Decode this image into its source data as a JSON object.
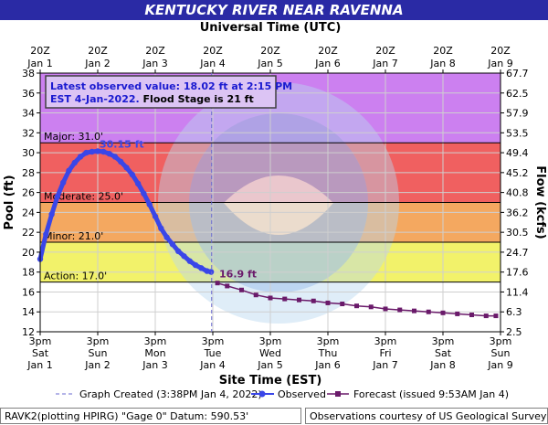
{
  "title": "KENTUCKY RIVER NEAR RAVENNA",
  "colors": {
    "major": "#f06060",
    "moderate": "#f4a860",
    "minor": "#f2f26a",
    "action": "#f8f8a0",
    "record": "#cc80f0",
    "observed": "#3a46e8",
    "forecast": "#6a1a6a",
    "title_bg": "#2a2aa5"
  },
  "legend": {
    "graph_created": "Graph Created (3:38PM Jan 4, 2022)",
    "observed": "Observed",
    "forecast": "Forecast (issued 9:53AM Jan 4)"
  },
  "footer": {
    "left": "RAVK2(plotting HPIRG) \"Gage 0\" Datum:  590.53'",
    "right": "Observations courtesy of US Geological Survey"
  },
  "chart_data": {
    "type": "line",
    "title": "KENTUCKY RIVER NEAR RAVENNA",
    "top_axis_title": "Universal Time (UTC)",
    "xlabel": "Site Time (EST)",
    "ylabel": "Pool (ft)",
    "y2label": "Flow (kcfs)",
    "ylim": [
      12,
      38
    ],
    "yticks": [
      12,
      14,
      16,
      18,
      20,
      22,
      24,
      26,
      28,
      30,
      32,
      34,
      36,
      38
    ],
    "y2ticks": [
      "2.5",
      "6.3",
      "11.4",
      "17.6",
      "24.7",
      "30.5",
      "36.2",
      "40.8",
      "45.2",
      "49.4",
      "53.5",
      "57.9",
      "62.5",
      "67.7"
    ],
    "x_unit": "days after 3pm EST Jan 1",
    "xlim": [
      0,
      8
    ],
    "bottom_ticks": [
      {
        "time": "3pm",
        "day": "Sat",
        "date": "Jan 1"
      },
      {
        "time": "3pm",
        "day": "Sun",
        "date": "Jan 2"
      },
      {
        "time": "3pm",
        "day": "Mon",
        "date": "Jan 3"
      },
      {
        "time": "3pm",
        "day": "Tue",
        "date": "Jan 4"
      },
      {
        "time": "3pm",
        "day": "Wed",
        "date": "Jan 5"
      },
      {
        "time": "3pm",
        "day": "Thu",
        "date": "Jan 6"
      },
      {
        "time": "3pm",
        "day": "Fri",
        "date": "Jan 7"
      },
      {
        "time": "3pm",
        "day": "Sat",
        "date": "Jan 8"
      },
      {
        "time": "3pm",
        "day": "Sun",
        "date": "Jan 9"
      }
    ],
    "top_ticks": [
      {
        "time": "20Z",
        "date": "Jan 1"
      },
      {
        "time": "20Z",
        "date": "Jan 2"
      },
      {
        "time": "20Z",
        "date": "Jan 3"
      },
      {
        "time": "20Z",
        "date": "Jan 4"
      },
      {
        "time": "20Z",
        "date": "Jan 5"
      },
      {
        "time": "20Z",
        "date": "Jan 6"
      },
      {
        "time": "20Z",
        "date": "Jan 7"
      },
      {
        "time": "20Z",
        "date": "Jan 8"
      },
      {
        "time": "20Z",
        "date": "Jan 9"
      }
    ],
    "flood_stages": [
      {
        "name": "Major",
        "value": 31.0,
        "label": "Major: 31.0'"
      },
      {
        "name": "Moderate",
        "value": 25.0,
        "label": "Moderate: 25.0'"
      },
      {
        "name": "Minor",
        "value": 21.0,
        "label": "Minor: 21.0'"
      },
      {
        "name": "Action",
        "value": 17.0,
        "label": "Action: 17.0'"
      }
    ],
    "info_box": {
      "line1": "Latest observed value: 18.02 ft at 2:15 PM",
      "line2a": "EST 4-Jan-2022.",
      "line2b": "Flood Stage is 21 ft"
    },
    "observed_peak_label": "30.15 ft",
    "forecast_start_label": "16.9 ft",
    "graph_created_x": 2.98,
    "series": [
      {
        "name": "Observed",
        "x": [
          0.0,
          0.1,
          0.2,
          0.3,
          0.4,
          0.5,
          0.6,
          0.7,
          0.8,
          0.9,
          1.0,
          1.1,
          1.2,
          1.3,
          1.4,
          1.5,
          1.6,
          1.7,
          1.8,
          1.9,
          2.0,
          2.1,
          2.2,
          2.3,
          2.4,
          2.5,
          2.6,
          2.7,
          2.8,
          2.9,
          2.97
        ],
        "values": [
          19.3,
          21.8,
          23.8,
          25.6,
          27.0,
          28.2,
          29.0,
          29.6,
          30.0,
          30.1,
          30.15,
          30.1,
          29.9,
          29.6,
          29.1,
          28.5,
          27.8,
          26.9,
          25.9,
          24.8,
          23.6,
          22.4,
          21.5,
          20.8,
          20.1,
          19.6,
          19.1,
          18.7,
          18.4,
          18.1,
          18.02
        ]
      },
      {
        "name": "Forecast",
        "x": [
          3.08,
          3.25,
          3.5,
          3.75,
          4.0,
          4.25,
          4.5,
          4.75,
          5.0,
          5.25,
          5.5,
          5.75,
          6.0,
          6.25,
          6.5,
          6.75,
          7.0,
          7.25,
          7.5,
          7.75,
          7.92
        ],
        "values": [
          16.9,
          16.6,
          16.2,
          15.7,
          15.4,
          15.3,
          15.2,
          15.1,
          14.9,
          14.8,
          14.6,
          14.5,
          14.3,
          14.2,
          14.1,
          14.0,
          13.9,
          13.8,
          13.7,
          13.6,
          13.6
        ]
      }
    ]
  }
}
